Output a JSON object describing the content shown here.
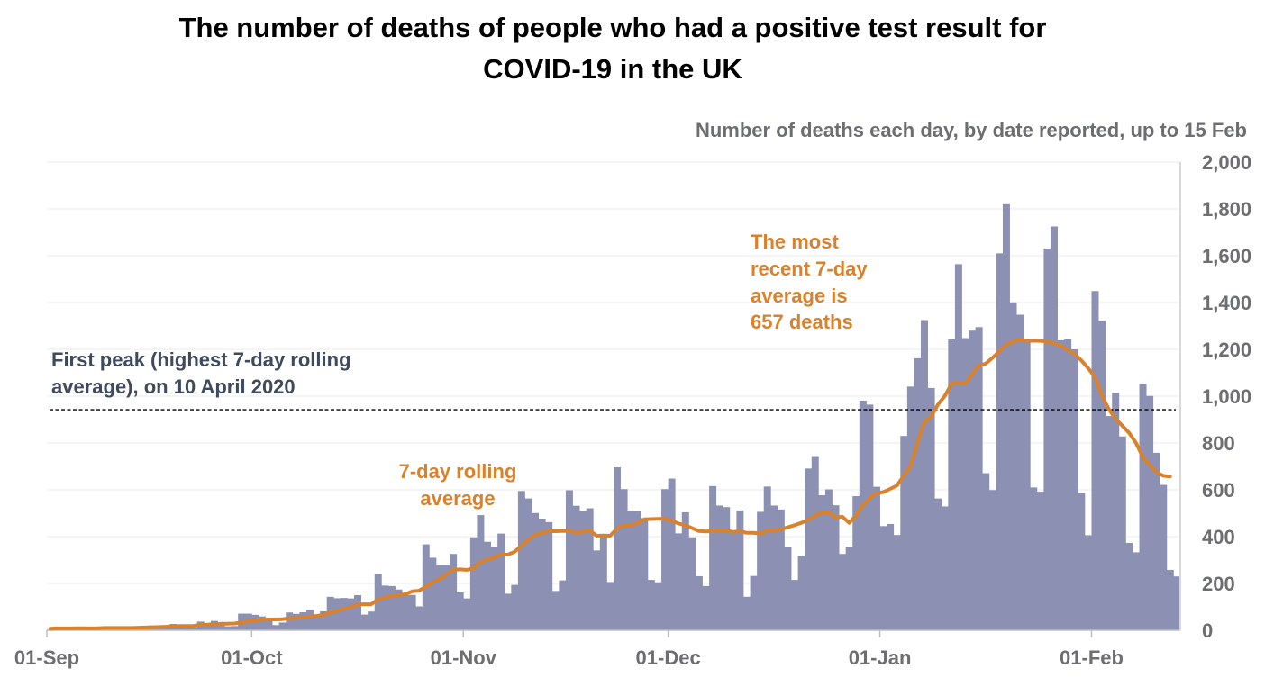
{
  "chart_data": {
    "type": "bar",
    "title": "The number of deaths of people who had a positive test result for COVID-19 in the UK",
    "title_lines": [
      "The number of deaths of people who had a positive test result for",
      "COVID-19 in the UK"
    ],
    "subtitle": "Number of deaths each day, by date reported, up to 15 Feb",
    "xlabel": "",
    "ylabel": "",
    "start_date": "2020-09-01",
    "end_date": "2021-02-15",
    "ylim": [
      0,
      2000
    ],
    "y_ticks": [
      0,
      200,
      400,
      600,
      800,
      1000,
      1200,
      1400,
      1600,
      1800,
      2000
    ],
    "y_tick_labels": [
      "0",
      "200",
      "400",
      "600",
      "800",
      "1,000",
      "1,200",
      "1,400",
      "1,600",
      "1,800",
      "2,000"
    ],
    "y_axis_position": "right",
    "grid": true,
    "x_tick_labels": [
      {
        "label": "01-Sep",
        "day_index": 0
      },
      {
        "label": "01-Oct",
        "day_index": 30
      },
      {
        "label": "01-Nov",
        "day_index": 61
      },
      {
        "label": "01-Dec",
        "day_index": 91
      },
      {
        "label": "01-Jan",
        "day_index": 122
      },
      {
        "label": "01-Feb",
        "day_index": 153
      }
    ],
    "series": [
      {
        "name": "Daily deaths",
        "type": "bar",
        "color": "#8c90b3",
        "values": [
          3,
          10,
          12,
          10,
          12,
          2,
          3,
          8,
          14,
          8,
          6,
          9,
          5,
          9,
          7,
          20,
          21,
          19,
          27,
          18,
          11,
          11,
          37,
          20,
          40,
          34,
          17,
          18,
          71,
          71,
          66,
          59,
          49,
          22,
          33,
          76,
          70,
          77,
          87,
          65,
          81,
          143,
          137,
          138,
          136,
          150,
          67,
          80,
          241,
          191,
          189,
          174,
          150,
          151,
          102,
          367,
          310,
          280,
          280,
          326,
          162,
          136,
          397,
          492,
          378,
          355,
          413,
          156,
          194,
          595,
          563,
          501,
          477,
          462,
          168,
          213,
          598,
          532,
          511,
          521,
          341,
          398,
          206,
          696,
          603,
          511,
          511,
          479,
          215,
          205,
          603,
          648,
          414,
          504,
          397,
          231,
          189,
          616,
          533,
          526,
          426,
          512,
          143,
          232,
          506,
          614,
          533,
          516,
          354,
          215,
          318,
          691,
          744,
          577,
          602,
          534,
          326,
          357,
          573,
          981,
          964,
          613,
          445,
          454,
          407,
          830,
          1041,
          1162,
          1325,
          1035,
          563,
          529,
          1243,
          1564,
          1248,
          1280,
          1295,
          671,
          599,
          1610,
          1820,
          1401,
          1348,
          1245,
          610,
          592,
          1631,
          1725,
          1239,
          1245,
          1200,
          587,
          406,
          1449,
          1322,
          915,
          1014,
          828,
          373,
          333,
          1052,
          1001,
          758,
          621,
          258,
          230
        ],
        "last_date": "2021-02-15"
      },
      {
        "name": "7-day rolling average",
        "type": "line",
        "color": "#d9822b",
        "values": [
          7,
          8,
          8,
          8,
          9,
          9,
          8,
          9,
          10,
          10,
          10,
          10,
          10,
          11,
          12,
          13,
          14,
          15,
          16,
          18,
          18,
          19,
          23,
          24,
          26,
          28,
          28,
          29,
          33,
          38,
          42,
          45,
          46,
          46,
          47,
          52,
          52,
          55,
          59,
          61,
          66,
          75,
          83,
          91,
          99,
          111,
          111,
          111,
          132,
          139,
          146,
          151,
          154,
          166,
          169,
          187,
          204,
          219,
          237,
          259,
          260,
          258,
          265,
          291,
          301,
          311,
          324,
          323,
          335,
          361,
          386,
          407,
          416,
          423,
          423,
          424,
          424,
          419,
          421,
          427,
          404,
          405,
          404,
          434,
          448,
          448,
          457,
          474,
          475,
          476,
          476,
          469,
          456,
          449,
          436,
          424,
          422,
          423,
          425,
          426,
          420,
          424,
          416,
          416,
          413,
          425,
          427,
          431,
          440,
          449,
          459,
          472,
          490,
          502,
          505,
          481,
          485,
          459,
          490,
          534,
          565,
          586,
          590,
          604,
          618,
          660,
          702,
          800,
          890,
          912,
          964,
          1000,
          1052,
          1058,
          1053,
          1093,
          1131,
          1139,
          1164,
          1191,
          1219,
          1233,
          1242,
          1236,
          1237,
          1236,
          1234,
          1226,
          1215,
          1197,
          1180,
          1153,
          1120,
          1082,
          1004,
          946,
          904,
          874,
          843,
          801,
          741,
          706,
          675,
          660,
          657
        ],
        "final_value": 657
      },
      {
        "name": "First peak (highest 7-day rolling average), on 10 April 2020",
        "type": "reference_line",
        "value": 942,
        "style": "dashed"
      }
    ],
    "annotations": [
      {
        "text_lines": [
          "First peak (highest 7-day rolling",
          "average), on 10 April 2020"
        ],
        "color": "#3f4a5c",
        "anchor": "reference-line-left"
      },
      {
        "text_lines": [
          "7-day rolling",
          "average"
        ],
        "color": "#d9822b",
        "anchor": "mid-November"
      },
      {
        "text_lines": [
          "The most",
          "recent 7-day",
          "average is",
          "657 deaths"
        ],
        "color": "#d9822b",
        "anchor": "late-December-top"
      }
    ]
  }
}
